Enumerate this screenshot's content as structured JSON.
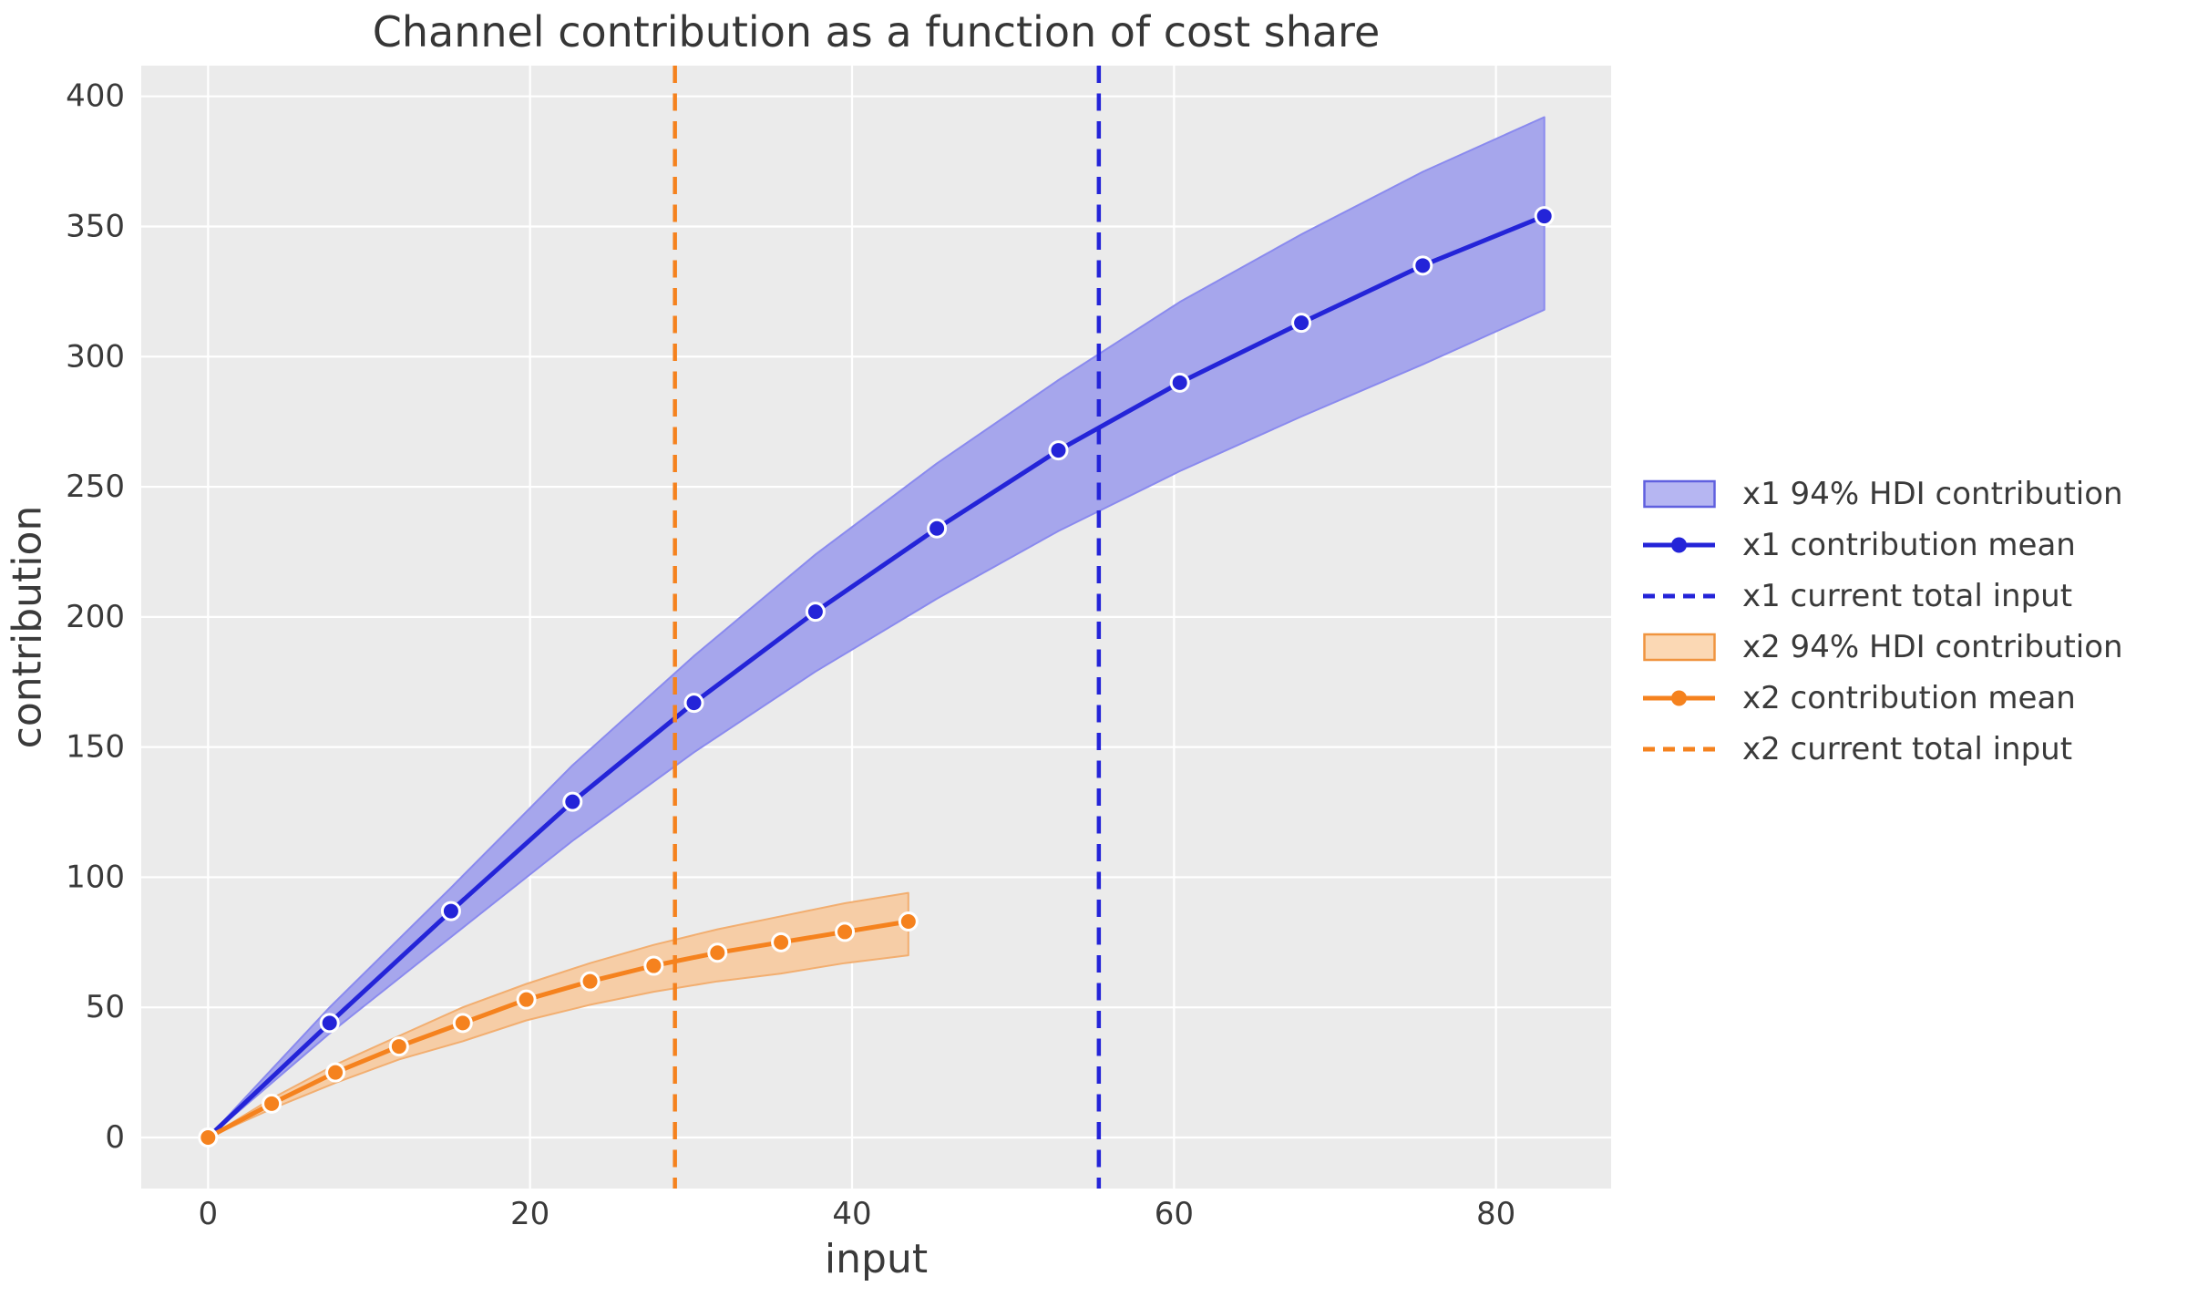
{
  "title": "Channel contribution as a function of cost share",
  "axes": {
    "xlabel": "input",
    "ylabel": "contribution",
    "x_ticks": [
      0,
      20,
      40,
      60,
      80
    ],
    "y_ticks": [
      0,
      50,
      100,
      150,
      200,
      250,
      300,
      350,
      400
    ],
    "grid": true
  },
  "colors": {
    "figure_background": "#ffffff",
    "plot_background": "#ebebeb",
    "gridline": "#ffffff",
    "text": "#3a3a3a",
    "x1_line": "#2424d8",
    "x1_band_fill": "#a6a6ec",
    "x1_band_edge": "#8a8aee",
    "x1_legend_patch_fill": "#b6b6f2",
    "x1_legend_patch_edge": "#6060df",
    "x2_line": "#f5821e",
    "x2_band_fill": "#f6cda6",
    "x2_band_edge": "#f2ae70",
    "x2_legend_patch_fill": "#fbd8b4",
    "x2_legend_patch_edge": "#f0943f",
    "marker_edge": "#ffffff"
  },
  "chart_data": {
    "type": "line",
    "title": "Channel contribution as a function of cost share",
    "xlabel": "input",
    "ylabel": "contribution",
    "xlim": [
      -4.15,
      87.15
    ],
    "ylim": [
      -19.6,
      411.8
    ],
    "grid": true,
    "legend_position": "right of axes, outside",
    "series": [
      {
        "name": "x1",
        "x": [
          0,
          7.55,
          15.09,
          22.64,
          30.18,
          37.73,
          45.27,
          52.82,
          60.36,
          67.91,
          75.45,
          83.0
        ],
        "mean": [
          0,
          44,
          87,
          129,
          167,
          202,
          234,
          264,
          290,
          313,
          335,
          354
        ],
        "hdi_lower": [
          0,
          40,
          77,
          114,
          148,
          179,
          207,
          233,
          256,
          277,
          297,
          318
        ],
        "hdi_upper": [
          0,
          50,
          96,
          143,
          185,
          224,
          259,
          291,
          321,
          347,
          371,
          392
        ],
        "current_total_input": 55.33,
        "line_color": "#2424d8",
        "band_fill": "#a6a6ec",
        "band_edge": "#8a8aee"
      },
      {
        "name": "x2",
        "x": [
          0,
          3.95,
          7.91,
          11.86,
          15.82,
          19.77,
          23.73,
          27.68,
          31.64,
          35.59,
          39.55,
          43.5
        ],
        "mean": [
          0,
          13,
          25,
          35,
          44,
          53,
          60,
          66,
          71,
          75,
          79,
          83
        ],
        "hdi_lower": [
          0,
          11,
          21,
          30,
          37,
          45,
          51,
          56,
          60,
          63,
          67,
          70
        ],
        "hdi_upper": [
          0,
          15,
          28,
          39,
          50,
          59,
          67,
          74,
          80,
          85,
          90,
          94
        ],
        "current_total_input": 29.0,
        "line_color": "#f5821e",
        "band_fill": "#f6cda6",
        "band_edge": "#f2ae70"
      }
    ]
  },
  "legend": {
    "entries": [
      {
        "label": "x1 94% HDI contribution",
        "handle": "patch",
        "fill": "#b6b6f2",
        "edge": "#6060df",
        "color": "#2424d8"
      },
      {
        "label": "x1 contribution mean",
        "handle": "line_marker",
        "fill": "#2424d8",
        "edge": "#2424d8",
        "color": "#2424d8"
      },
      {
        "label": "x1 current total input",
        "handle": "dashed_line",
        "fill": "#2424d8",
        "edge": "#2424d8",
        "color": "#2424d8"
      },
      {
        "label": "x2 94% HDI contribution",
        "handle": "patch",
        "fill": "#fbd8b4",
        "edge": "#f0943f",
        "color": "#f5821e"
      },
      {
        "label": "x2 contribution mean",
        "handle": "line_marker",
        "fill": "#f5821e",
        "edge": "#f5821e",
        "color": "#f5821e"
      },
      {
        "label": "x2 current total input",
        "handle": "dashed_line",
        "fill": "#f5821e",
        "edge": "#f5821e",
        "color": "#f5821e"
      }
    ]
  }
}
